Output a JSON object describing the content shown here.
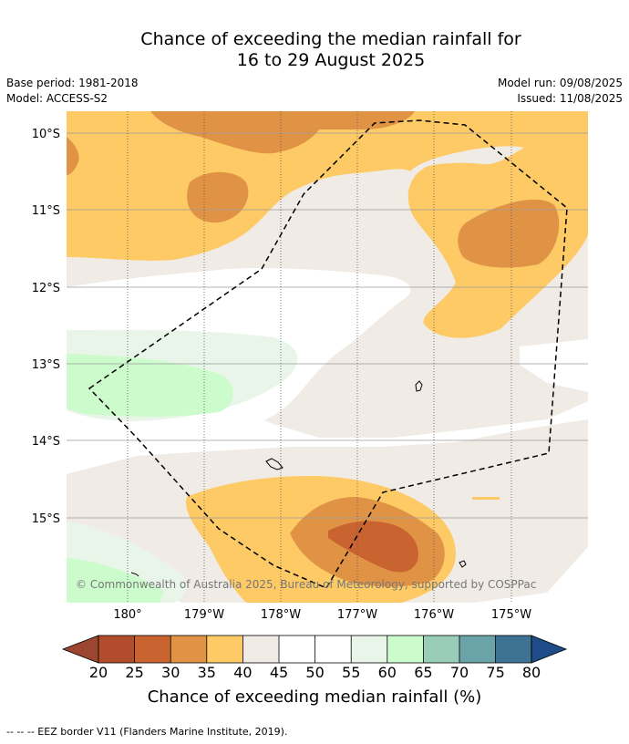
{
  "title": {
    "line1": "Chance of exceeding the median rainfall for",
    "line2": "16 to 29 August 2025"
  },
  "meta": {
    "base_period": "Base period: 1981-2018",
    "model": "Model: ACCESS-S2",
    "model_run": "Model run: 09/08/2025",
    "issued": "Issued: 11/08/2025"
  },
  "map": {
    "lat_labels": [
      "10°S",
      "11°S",
      "12°S",
      "13°S",
      "14°S",
      "15°S"
    ],
    "lon_labels": [
      "180°",
      "179°W",
      "178°W",
      "177°W",
      "176°W",
      "175°W"
    ],
    "copyright": "© Commonwealth of Australia 2025, Bureau of Meteorology, supported by COSPPac"
  },
  "colorbar": {
    "ticks": [
      "20",
      "25",
      "30",
      "35",
      "40",
      "45",
      "50",
      "55",
      "60",
      "65",
      "70",
      "75",
      "80"
    ],
    "colors": {
      "under": "#9c4530",
      "20-25": "#b14c2c",
      "25-30": "#c9632f",
      "30-35": "#e09345",
      "35-40": "#fdca65",
      "40-45": "#f0ebe5",
      "45-50": "#ffffff",
      "50-55": "#ffffff",
      "55-60": "#eaf5ea",
      "60-65": "#ccfccc",
      "65-70": "#9acdb9",
      "70-75": "#6aa3a8",
      "75-80": "#3e7293",
      "over": "#1d4c88"
    },
    "label": "Chance of exceeding median rainfall (%)"
  },
  "footer": {
    "legend_note": "--  --  -- EEZ border V11 (Flanders Marine Institute, 2019)."
  }
}
